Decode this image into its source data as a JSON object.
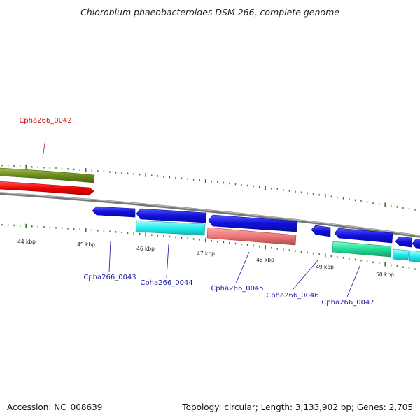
{
  "title": "Chlorobium phaeobacteroides DSM 266, complete genome",
  "accession": "Accession: NC_008639",
  "summary": "Topology: circular; Length: 3,133,902 bp; Genes: 2,705",
  "scale_labels": [
    "44 kbp",
    "45 kbp",
    "46 kbp",
    "47 kbp",
    "48 kbp",
    "49 kbp",
    "50 kbp"
  ],
  "gene_labels": [
    {
      "id": "0042",
      "text": "Cpha266_0042",
      "color": "#cc0000"
    },
    {
      "id": "0043",
      "text": "Cpha266_0043",
      "color": "#1a1aa6"
    },
    {
      "id": "0044",
      "text": "Cpha266_0044",
      "color": "#1a1aa6"
    },
    {
      "id": "0045",
      "text": "Cpha266_0045",
      "color": "#1a1aa6"
    },
    {
      "id": "0046",
      "text": "Cpha266_0046",
      "color": "#1a1aa6"
    },
    {
      "id": "0047",
      "text": "Cpha266_0047",
      "color": "#1a1aa6"
    }
  ],
  "colors": {
    "backbone": "#8a8a8a",
    "tick": "#2e7d1e",
    "olive": "#6b8a1e",
    "red": "#ee0000",
    "blue": "#1010dd",
    "cyan": "#22eeee",
    "salmon": "#ee7777",
    "green": "#22dd99"
  }
}
